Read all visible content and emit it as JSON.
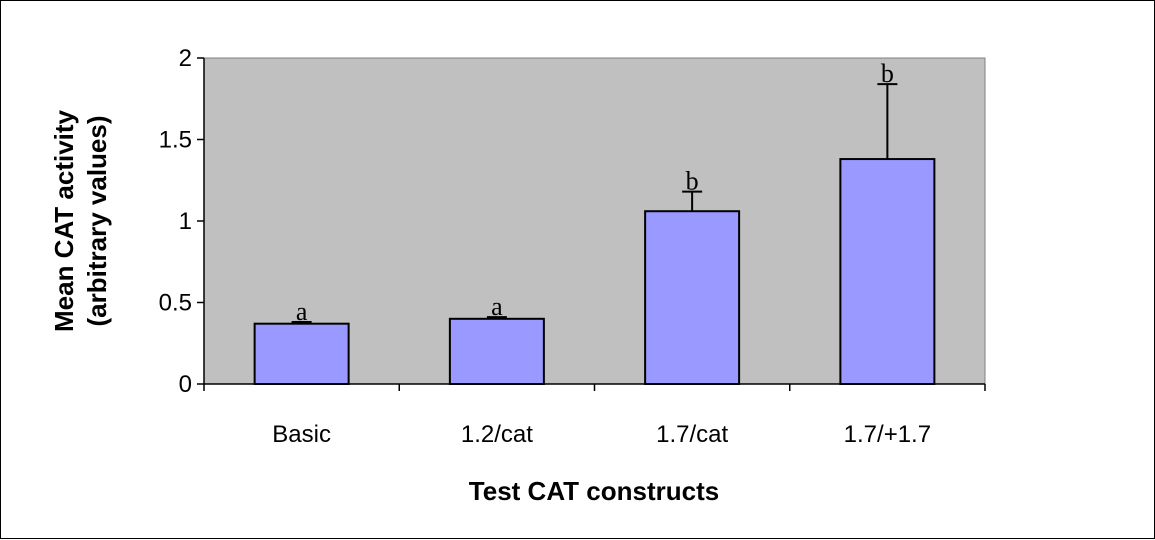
{
  "chart_data": {
    "type": "bar",
    "title": "",
    "xlabel": "Test CAT constructs",
    "ylabel": [
      "Mean CAT activity",
      "(arbitrary values)"
    ],
    "categories": [
      "Basic",
      "1.2/cat",
      "1.7/cat",
      "1.7/+1.7"
    ],
    "values": [
      0.37,
      0.4,
      1.06,
      1.38
    ],
    "error_upper": [
      0.01,
      0.01,
      0.12,
      0.46
    ],
    "significance_labels": [
      "a",
      "a",
      "b",
      "b"
    ],
    "ylim": [
      0,
      2
    ],
    "yticks": [
      0,
      0.5,
      1,
      1.5,
      2
    ],
    "ytick_labels": [
      "0",
      "0.5",
      "1",
      "1.5",
      "2"
    ],
    "grid": false,
    "legend": "none",
    "colors": {
      "plot_background": "#c0c0c0",
      "bar_fill": "#9999ff",
      "bar_stroke": "#000000",
      "page_background": "#ffffff"
    }
  }
}
